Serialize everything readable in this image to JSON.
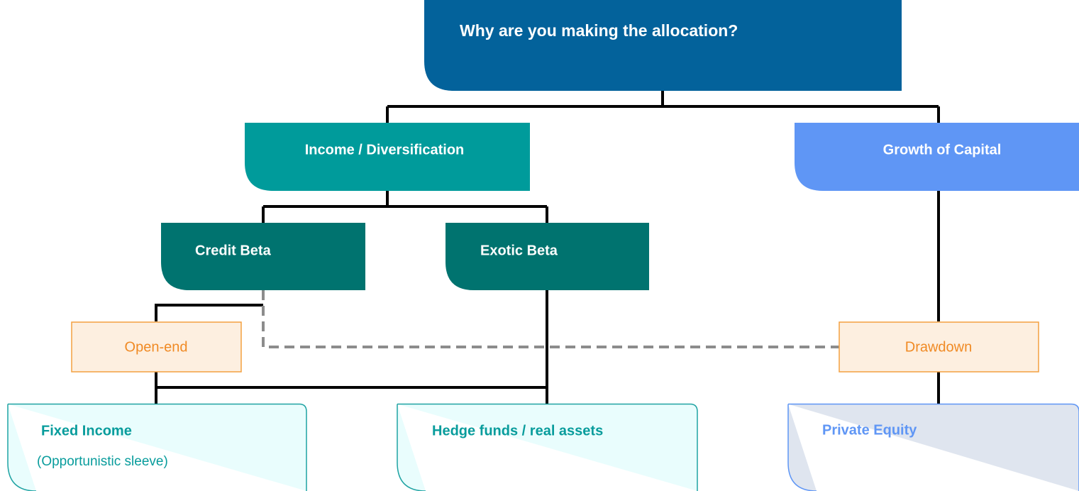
{
  "nodes": [
    {
      "label": "Why are you making the allocation?"
    },
    {
      "label": "Income / Diversification"
    },
    {
      "label": "Growth of Capital"
    },
    {
      "label": "Credit Beta"
    },
    {
      "label": "Exotic Beta"
    },
    {
      "label": "Open-end"
    },
    {
      "label": "Drawdown"
    },
    {
      "label": "Fixed Income",
      "sublabel": "(Opportunistic sleeve)"
    },
    {
      "label": "Hedge funds / real assets"
    },
    {
      "label": "Private Equity"
    }
  ]
}
